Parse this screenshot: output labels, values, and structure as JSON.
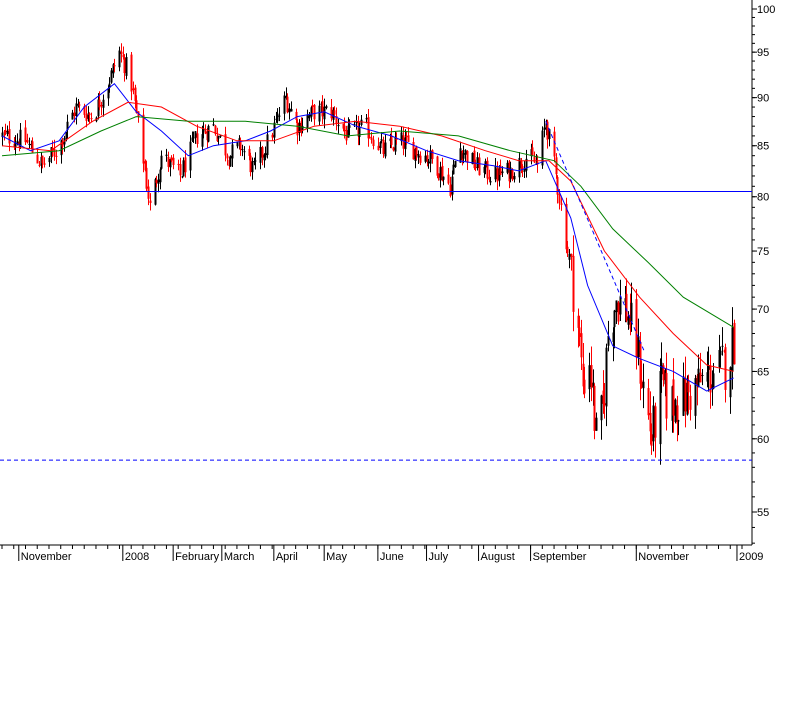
{
  "chart_data": {
    "type": "candlestick",
    "y_axis": {
      "position": "right",
      "scale": "log",
      "range": [
        52.5,
        101
      ],
      "ticks": [
        55,
        60,
        65,
        70,
        75,
        80,
        85,
        90,
        95,
        100
      ],
      "tick_labels": [
        "55",
        "60",
        "65",
        "70",
        "75",
        "80",
        "85",
        "90",
        "95",
        "100"
      ]
    },
    "x_axis": {
      "range": [
        "2007-10-22",
        "2009-01-05"
      ],
      "labels": [
        {
          "text": "November",
          "date": "2007-11-01"
        },
        {
          "text": "2008",
          "date": "2008-01-02"
        },
        {
          "text": "February",
          "date": "2008-02-01"
        },
        {
          "text": "March",
          "date": "2008-03-01"
        },
        {
          "text": "April",
          "date": "2008-04-01"
        },
        {
          "text": "May",
          "date": "2008-05-01"
        },
        {
          "text": "June",
          "date": "2008-06-02"
        },
        {
          "text": "July",
          "date": "2008-07-01"
        },
        {
          "text": "August",
          "date": "2008-08-01"
        },
        {
          "text": "September",
          "date": "2008-09-01"
        },
        {
          "text": "November",
          "date": "2008-11-03"
        },
        {
          "text": "2009",
          "date": "2009-01-02"
        }
      ]
    },
    "horizontal_lines": [
      {
        "value": 80.5,
        "style": "solid",
        "color": "#0000ff"
      },
      {
        "value": 58.5,
        "style": "dashed",
        "color": "#0000ff"
      }
    ],
    "trendline": {
      "style": "dashed",
      "color": "#0000ff",
      "from": {
        "date": "2008-09-10",
        "value": 87.5
      },
      "to": {
        "date": "2008-11-08",
        "value": 66.5
      }
    },
    "moving_averages": [
      {
        "color": "#0000ff",
        "points": [
          [
            "2007-10-22",
            86
          ],
          [
            "2007-11-08",
            84.5
          ],
          [
            "2007-11-25",
            85.5
          ],
          [
            "2007-12-10",
            89
          ],
          [
            "2007-12-28",
            91.5
          ],
          [
            "2008-01-10",
            88.5
          ],
          [
            "2008-01-25",
            86.5
          ],
          [
            "2008-02-10",
            84
          ],
          [
            "2008-02-25",
            85
          ],
          [
            "2008-03-15",
            85.5
          ],
          [
            "2008-03-30",
            86.5
          ],
          [
            "2008-04-15",
            88
          ],
          [
            "2008-05-01",
            88.5
          ],
          [
            "2008-05-20",
            87
          ],
          [
            "2008-06-10",
            86
          ],
          [
            "2008-07-01",
            84.5
          ],
          [
            "2008-07-20",
            83.5
          ],
          [
            "2008-08-10",
            83
          ],
          [
            "2008-08-25",
            82.5
          ],
          [
            "2008-09-10",
            83.5
          ],
          [
            "2008-09-25",
            78
          ],
          [
            "2008-10-05",
            72
          ],
          [
            "2008-10-20",
            67
          ],
          [
            "2008-11-05",
            66
          ],
          [
            "2008-11-25",
            65
          ],
          [
            "2008-12-15",
            63.5
          ],
          [
            "2008-12-31",
            64.5
          ]
        ]
      },
      {
        "color": "#ff0000",
        "points": [
          [
            "2007-10-22",
            85
          ],
          [
            "2007-11-20",
            84.5
          ],
          [
            "2007-12-15",
            87.5
          ],
          [
            "2008-01-05",
            89.5
          ],
          [
            "2008-01-25",
            89
          ],
          [
            "2008-02-15",
            87
          ],
          [
            "2008-03-10",
            85.5
          ],
          [
            "2008-04-01",
            85.5
          ],
          [
            "2008-04-25",
            87
          ],
          [
            "2008-05-20",
            87.5
          ],
          [
            "2008-06-15",
            87
          ],
          [
            "2008-07-10",
            86
          ],
          [
            "2008-08-05",
            84.5
          ],
          [
            "2008-08-25",
            83.5
          ],
          [
            "2008-09-12",
            83.5
          ],
          [
            "2008-09-25",
            81.5
          ],
          [
            "2008-10-15",
            75
          ],
          [
            "2008-11-05",
            71
          ],
          [
            "2008-11-25",
            68
          ],
          [
            "2008-12-15",
            65.5
          ],
          [
            "2008-12-31",
            65
          ]
        ]
      },
      {
        "color": "#008000",
        "points": [
          [
            "2007-10-22",
            84
          ],
          [
            "2007-11-25",
            84.5
          ],
          [
            "2007-12-20",
            86.5
          ],
          [
            "2008-01-10",
            88
          ],
          [
            "2008-02-10",
            87.5
          ],
          [
            "2008-03-15",
            87.5
          ],
          [
            "2008-04-15",
            87
          ],
          [
            "2008-05-15",
            86
          ],
          [
            "2008-06-15",
            86.5
          ],
          [
            "2008-07-20",
            86
          ],
          [
            "2008-08-20",
            84.5
          ],
          [
            "2008-09-15",
            83.5
          ],
          [
            "2008-10-01",
            81
          ],
          [
            "2008-10-20",
            77
          ],
          [
            "2008-11-10",
            74
          ],
          [
            "2008-12-01",
            71
          ],
          [
            "2008-12-31",
            68.5
          ]
        ]
      }
    ],
    "candles_anchor_closes": [
      [
        "2007-10-22",
        86
      ],
      [
        "2007-11-05",
        85.5
      ],
      [
        "2007-11-15",
        83
      ],
      [
        "2007-11-25",
        85
      ],
      [
        "2007-12-05",
        89
      ],
      [
        "2007-12-15",
        88
      ],
      [
        "2007-12-25",
        92
      ],
      [
        "2007-12-31",
        95
      ],
      [
        "2008-01-06",
        92.5
      ],
      [
        "2008-01-12",
        86
      ],
      [
        "2008-01-18",
        79
      ],
      [
        "2008-01-25",
        84
      ],
      [
        "2008-02-05",
        82
      ],
      [
        "2008-02-15",
        86
      ],
      [
        "2008-02-25",
        87
      ],
      [
        "2008-03-05",
        84
      ],
      [
        "2008-03-12",
        85
      ],
      [
        "2008-03-20",
        82.5
      ],
      [
        "2008-03-30",
        86
      ],
      [
        "2008-04-08",
        90
      ],
      [
        "2008-04-15",
        87
      ],
      [
        "2008-04-25",
        88.5
      ],
      [
        "2008-05-05",
        88.5
      ],
      [
        "2008-05-15",
        86
      ],
      [
        "2008-05-25",
        87
      ],
      [
        "2008-06-05",
        84.5
      ],
      [
        "2008-06-15",
        85.5
      ],
      [
        "2008-06-25",
        84.5
      ],
      [
        "2008-07-05",
        83.5
      ],
      [
        "2008-07-15",
        81
      ],
      [
        "2008-07-20",
        85
      ],
      [
        "2008-07-30",
        83
      ],
      [
        "2008-08-10",
        82
      ],
      [
        "2008-08-20",
        82.5
      ],
      [
        "2008-08-30",
        84
      ],
      [
        "2008-09-05",
        83
      ],
      [
        "2008-09-10",
        87.5
      ],
      [
        "2008-09-15",
        83
      ],
      [
        "2008-09-22",
        76
      ],
      [
        "2008-09-28",
        70
      ],
      [
        "2008-10-02",
        64
      ],
      [
        "2008-10-06",
        66
      ],
      [
        "2008-10-10",
        60
      ],
      [
        "2008-10-14",
        62
      ],
      [
        "2008-10-17",
        68
      ],
      [
        "2008-10-22",
        71
      ],
      [
        "2008-10-28",
        70
      ],
      [
        "2008-11-03",
        67
      ],
      [
        "2008-11-08",
        63
      ],
      [
        "2008-11-12",
        60
      ],
      [
        "2008-11-18",
        64
      ],
      [
        "2008-11-22",
        62.5
      ],
      [
        "2008-12-02",
        63
      ],
      [
        "2008-12-10",
        64
      ],
      [
        "2008-12-20",
        65
      ],
      [
        "2008-12-26",
        65.5
      ],
      [
        "2008-12-31",
        67.5
      ]
    ]
  }
}
